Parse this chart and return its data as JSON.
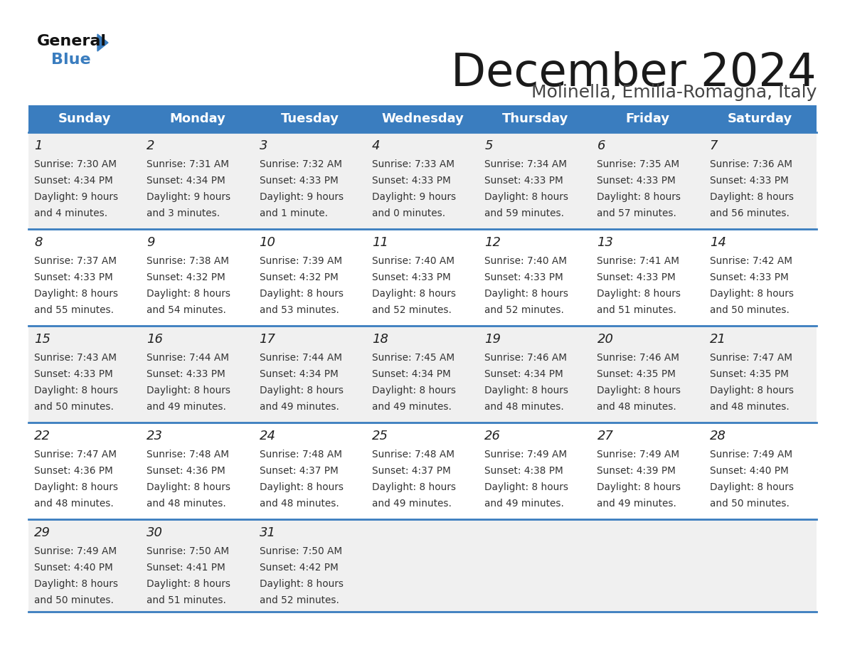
{
  "title": "December 2024",
  "subtitle": "Molinella, Emilia-Romagna, Italy",
  "days_of_week": [
    "Sunday",
    "Monday",
    "Tuesday",
    "Wednesday",
    "Thursday",
    "Friday",
    "Saturday"
  ],
  "header_bg": "#3a7dbf",
  "header_text": "#ffffff",
  "cell_bg_odd": "#f0f0f0",
  "cell_bg_even": "#ffffff",
  "separator_color": "#3a7dbf",
  "day_num_color": "#222222",
  "cell_text_color": "#333333",
  "title_color": "#1a1a1a",
  "subtitle_color": "#444444",
  "calendar": [
    [
      {
        "day": "1",
        "sunrise": "7:30 AM",
        "sunset": "4:34 PM",
        "daylight_h": "9 hours",
        "daylight_m": "and 4 minutes."
      },
      {
        "day": "2",
        "sunrise": "7:31 AM",
        "sunset": "4:34 PM",
        "daylight_h": "9 hours",
        "daylight_m": "and 3 minutes."
      },
      {
        "day": "3",
        "sunrise": "7:32 AM",
        "sunset": "4:33 PM",
        "daylight_h": "9 hours",
        "daylight_m": "and 1 minute."
      },
      {
        "day": "4",
        "sunrise": "7:33 AM",
        "sunset": "4:33 PM",
        "daylight_h": "9 hours",
        "daylight_m": "and 0 minutes."
      },
      {
        "day": "5",
        "sunrise": "7:34 AM",
        "sunset": "4:33 PM",
        "daylight_h": "8 hours",
        "daylight_m": "and 59 minutes."
      },
      {
        "day": "6",
        "sunrise": "7:35 AM",
        "sunset": "4:33 PM",
        "daylight_h": "8 hours",
        "daylight_m": "and 57 minutes."
      },
      {
        "day": "7",
        "sunrise": "7:36 AM",
        "sunset": "4:33 PM",
        "daylight_h": "8 hours",
        "daylight_m": "and 56 minutes."
      }
    ],
    [
      {
        "day": "8",
        "sunrise": "7:37 AM",
        "sunset": "4:33 PM",
        "daylight_h": "8 hours",
        "daylight_m": "and 55 minutes."
      },
      {
        "day": "9",
        "sunrise": "7:38 AM",
        "sunset": "4:32 PM",
        "daylight_h": "8 hours",
        "daylight_m": "and 54 minutes."
      },
      {
        "day": "10",
        "sunrise": "7:39 AM",
        "sunset": "4:32 PM",
        "daylight_h": "8 hours",
        "daylight_m": "and 53 minutes."
      },
      {
        "day": "11",
        "sunrise": "7:40 AM",
        "sunset": "4:33 PM",
        "daylight_h": "8 hours",
        "daylight_m": "and 52 minutes."
      },
      {
        "day": "12",
        "sunrise": "7:40 AM",
        "sunset": "4:33 PM",
        "daylight_h": "8 hours",
        "daylight_m": "and 52 minutes."
      },
      {
        "day": "13",
        "sunrise": "7:41 AM",
        "sunset": "4:33 PM",
        "daylight_h": "8 hours",
        "daylight_m": "and 51 minutes."
      },
      {
        "day": "14",
        "sunrise": "7:42 AM",
        "sunset": "4:33 PM",
        "daylight_h": "8 hours",
        "daylight_m": "and 50 minutes."
      }
    ],
    [
      {
        "day": "15",
        "sunrise": "7:43 AM",
        "sunset": "4:33 PM",
        "daylight_h": "8 hours",
        "daylight_m": "and 50 minutes."
      },
      {
        "day": "16",
        "sunrise": "7:44 AM",
        "sunset": "4:33 PM",
        "daylight_h": "8 hours",
        "daylight_m": "and 49 minutes."
      },
      {
        "day": "17",
        "sunrise": "7:44 AM",
        "sunset": "4:34 PM",
        "daylight_h": "8 hours",
        "daylight_m": "and 49 minutes."
      },
      {
        "day": "18",
        "sunrise": "7:45 AM",
        "sunset": "4:34 PM",
        "daylight_h": "8 hours",
        "daylight_m": "and 49 minutes."
      },
      {
        "day": "19",
        "sunrise": "7:46 AM",
        "sunset": "4:34 PM",
        "daylight_h": "8 hours",
        "daylight_m": "and 48 minutes."
      },
      {
        "day": "20",
        "sunrise": "7:46 AM",
        "sunset": "4:35 PM",
        "daylight_h": "8 hours",
        "daylight_m": "and 48 minutes."
      },
      {
        "day": "21",
        "sunrise": "7:47 AM",
        "sunset": "4:35 PM",
        "daylight_h": "8 hours",
        "daylight_m": "and 48 minutes."
      }
    ],
    [
      {
        "day": "22",
        "sunrise": "7:47 AM",
        "sunset": "4:36 PM",
        "daylight_h": "8 hours",
        "daylight_m": "and 48 minutes."
      },
      {
        "day": "23",
        "sunrise": "7:48 AM",
        "sunset": "4:36 PM",
        "daylight_h": "8 hours",
        "daylight_m": "and 48 minutes."
      },
      {
        "day": "24",
        "sunrise": "7:48 AM",
        "sunset": "4:37 PM",
        "daylight_h": "8 hours",
        "daylight_m": "and 48 minutes."
      },
      {
        "day": "25",
        "sunrise": "7:48 AM",
        "sunset": "4:37 PM",
        "daylight_h": "8 hours",
        "daylight_m": "and 49 minutes."
      },
      {
        "day": "26",
        "sunrise": "7:49 AM",
        "sunset": "4:38 PM",
        "daylight_h": "8 hours",
        "daylight_m": "and 49 minutes."
      },
      {
        "day": "27",
        "sunrise": "7:49 AM",
        "sunset": "4:39 PM",
        "daylight_h": "8 hours",
        "daylight_m": "and 49 minutes."
      },
      {
        "day": "28",
        "sunrise": "7:49 AM",
        "sunset": "4:40 PM",
        "daylight_h": "8 hours",
        "daylight_m": "and 50 minutes."
      }
    ],
    [
      {
        "day": "29",
        "sunrise": "7:49 AM",
        "sunset": "4:40 PM",
        "daylight_h": "8 hours",
        "daylight_m": "and 50 minutes."
      },
      {
        "day": "30",
        "sunrise": "7:50 AM",
        "sunset": "4:41 PM",
        "daylight_h": "8 hours",
        "daylight_m": "and 51 minutes."
      },
      {
        "day": "31",
        "sunrise": "7:50 AM",
        "sunset": "4:42 PM",
        "daylight_h": "8 hours",
        "daylight_m": "and 52 minutes."
      },
      null,
      null,
      null,
      null
    ]
  ]
}
